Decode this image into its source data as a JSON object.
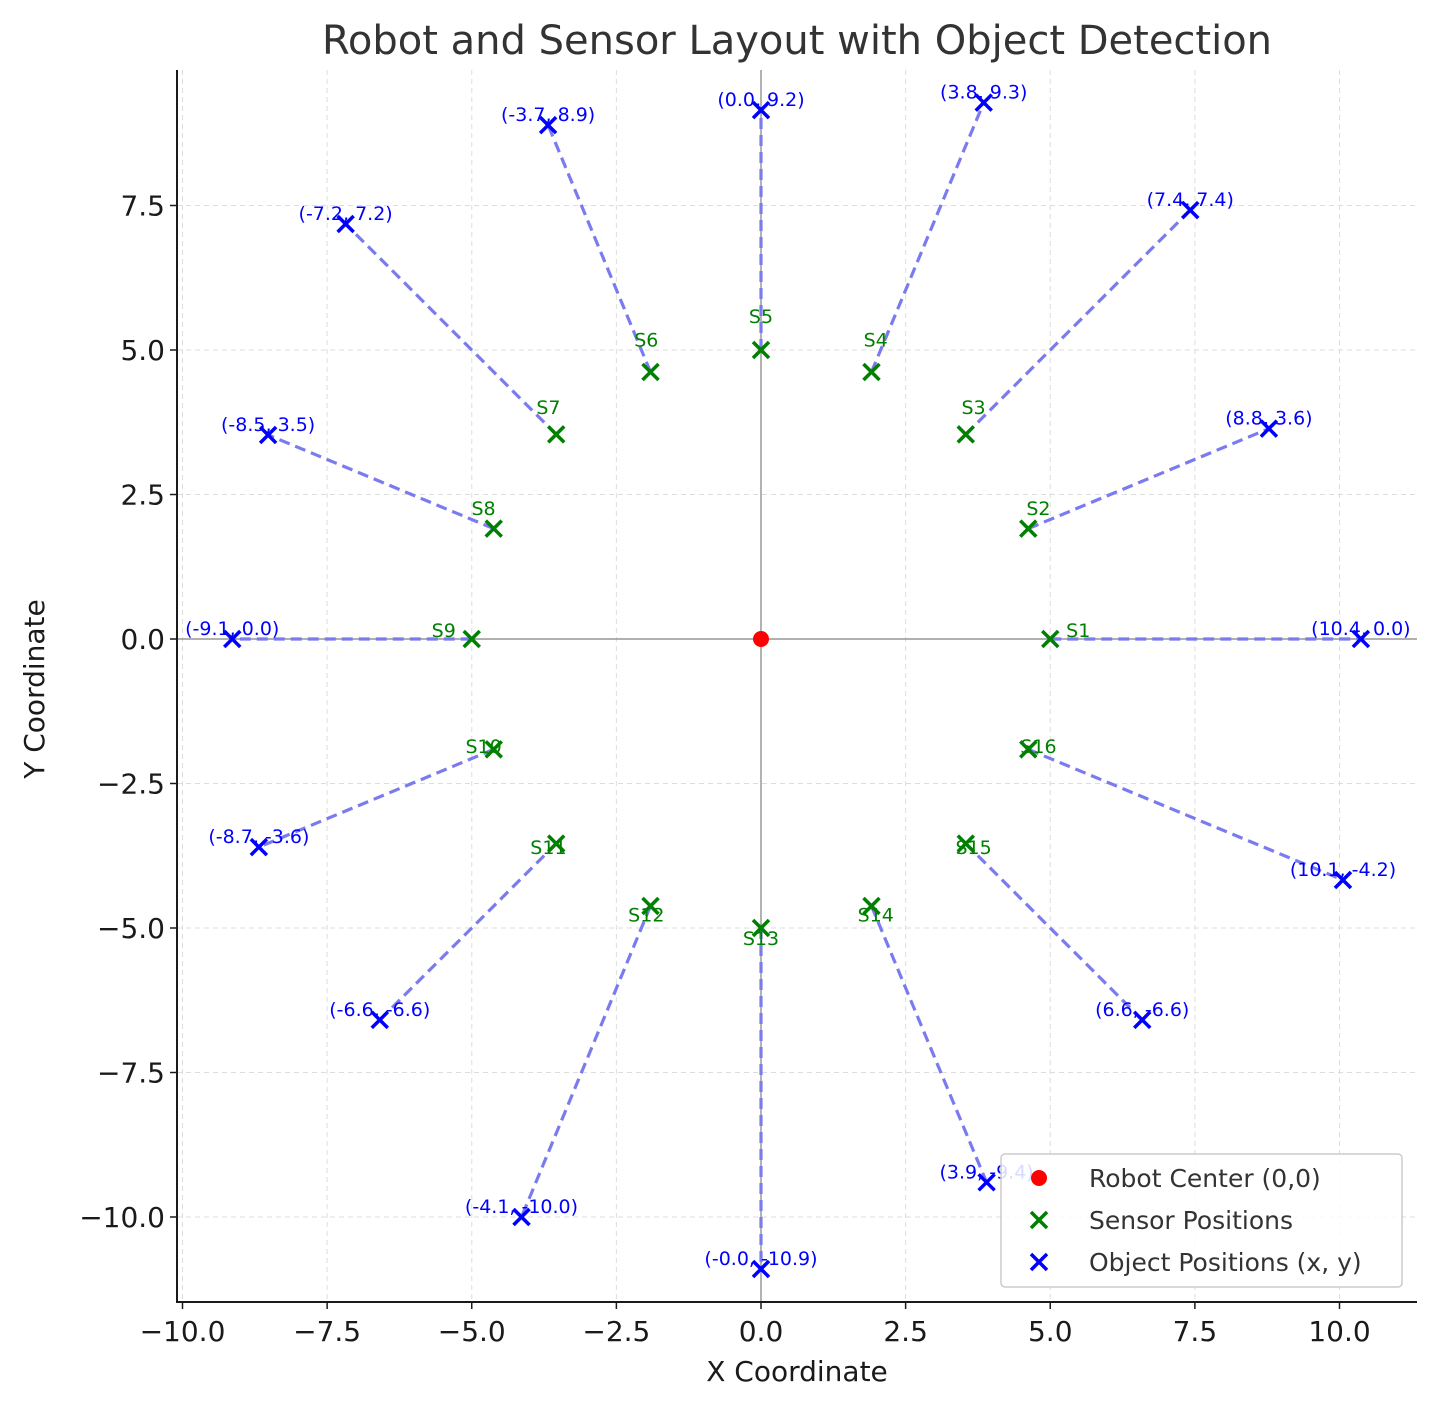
{
  "chart_data": {
    "type": "scatter",
    "title": "Robot and Sensor Layout with Object Detection",
    "xlabel": "X Coordinate",
    "ylabel": "Y Coordinate",
    "xlim": [
      -10.1,
      11.35
    ],
    "ylim": [
      -11.45,
      9.8
    ],
    "xticks": [
      -10.0,
      -7.5,
      -5.0,
      -2.5,
      0.0,
      2.5,
      5.0,
      7.5,
      10.0
    ],
    "yticks": [
      -10.0,
      -7.5,
      -5.0,
      -2.5,
      0.0,
      2.5,
      5.0,
      7.5
    ],
    "xtick_labels": [
      "−10.0",
      "−7.5",
      "−5.0",
      "−2.5",
      "0.0",
      "2.5",
      "5.0",
      "7.5",
      "10.0"
    ],
    "ytick_labels": [
      "−10.0",
      "−7.5",
      "−5.0",
      "−2.5",
      "0.0",
      "2.5",
      "5.0",
      "7.5"
    ],
    "grid": true,
    "legend_position": "bottom-right",
    "colors": {
      "robot": "#ff0000",
      "sensor": "#008000",
      "object": "#0000ff",
      "line": "#7b7bf0",
      "axes": "#808080",
      "grid": "#dddddd"
    },
    "robot": {
      "name": "Robot Center (0,0)",
      "x": 0,
      "y": 0
    },
    "sensors_series_name": "Sensor Positions",
    "objects_series_name": "Object Positions (x, y)",
    "sensors": [
      {
        "label": "S1",
        "x": 5.0,
        "y": 0.0
      },
      {
        "label": "S2",
        "x": 4.62,
        "y": 1.91
      },
      {
        "label": "S3",
        "x": 3.54,
        "y": 3.54
      },
      {
        "label": "S4",
        "x": 1.91,
        "y": 4.62
      },
      {
        "label": "S5",
        "x": 0.0,
        "y": 5.0
      },
      {
        "label": "S6",
        "x": -1.91,
        "y": 4.62
      },
      {
        "label": "S7",
        "x": -3.54,
        "y": 3.54
      },
      {
        "label": "S8",
        "x": -4.62,
        "y": 1.91
      },
      {
        "label": "S9",
        "x": -5.0,
        "y": 0.0
      },
      {
        "label": "S10",
        "x": -4.62,
        "y": -1.91
      },
      {
        "label": "S11",
        "x": -3.54,
        "y": -3.54
      },
      {
        "label": "S12",
        "x": -1.91,
        "y": -4.62
      },
      {
        "label": "S13",
        "x": 0.0,
        "y": -5.0
      },
      {
        "label": "S14",
        "x": 1.91,
        "y": -4.62
      },
      {
        "label": "S15",
        "x": 3.54,
        "y": -3.54
      },
      {
        "label": "S16",
        "x": 4.62,
        "y": -1.91
      }
    ],
    "objects": [
      {
        "label": "(10.4, 0.0)",
        "x": 10.37,
        "y": 0.0
      },
      {
        "label": "(8.8, 3.6)",
        "x": 8.78,
        "y": 3.64
      },
      {
        "label": "(7.4, 7.4)",
        "x": 7.42,
        "y": 7.42
      },
      {
        "label": "(3.8, 9.3)",
        "x": 3.85,
        "y": 9.28
      },
      {
        "label": "(0.0, 9.2)",
        "x": 0.0,
        "y": 9.15
      },
      {
        "label": "(-3.7, 8.9)",
        "x": -3.68,
        "y": 8.89
      },
      {
        "label": "(-7.2, 7.2)",
        "x": -7.18,
        "y": 7.18
      },
      {
        "label": "(-8.5, 3.5)",
        "x": -8.52,
        "y": 3.53
      },
      {
        "label": "(-9.1, 0.0)",
        "x": -9.14,
        "y": 0.0
      },
      {
        "label": "(-8.7, -3.6)",
        "x": -8.68,
        "y": -3.6
      },
      {
        "label": "(-6.6, -6.6)",
        "x": -6.59,
        "y": -6.59
      },
      {
        "label": "(-4.1, -10.0)",
        "x": -4.14,
        "y": -10.0
      },
      {
        "label": "(-0.0, -10.9)",
        "x": 0.0,
        "y": -10.9
      },
      {
        "label": "(3.9, -9.4)",
        "x": 3.9,
        "y": -9.4
      },
      {
        "label": "(6.6, -6.6)",
        "x": 6.59,
        "y": -6.59
      },
      {
        "label": "(10.1, -4.2)",
        "x": 10.06,
        "y": -4.17
      }
    ]
  }
}
